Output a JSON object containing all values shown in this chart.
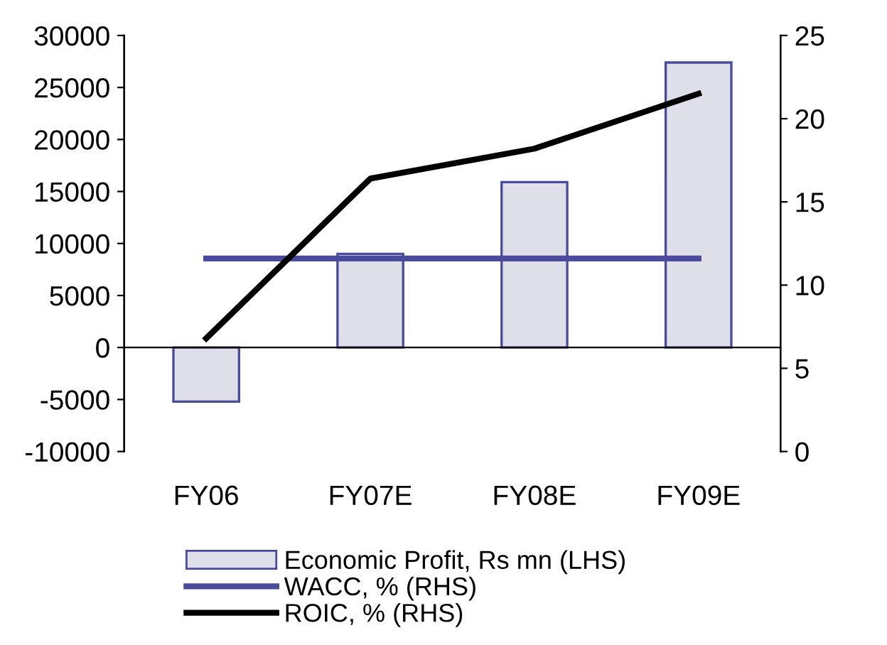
{
  "chart_data": {
    "type": "bar",
    "categories": [
      "FY06",
      "FY07E",
      "FY08E",
      "FY09E"
    ],
    "series": [
      {
        "name": "Economic Profit, Rs mn (LHS)",
        "color": "#dfdfea",
        "values": [
          -5200,
          9000,
          15900,
          27400
        ]
      },
      {
        "name": "WACC, % (RHS)",
        "type": "line",
        "axis": "y2",
        "color": "#4b4b9b",
        "values": [
          11.6,
          11.6,
          11.6,
          11.6
        ]
      },
      {
        "name": "ROIC, % (RHS)",
        "type": "line",
        "axis": "y2",
        "color": "#000000",
        "values": [
          6.8,
          16.4,
          18.2,
          21.5
        ]
      }
    ],
    "ylim": [
      -10000,
      30000
    ],
    "yticks": [
      -10000,
      -5000,
      0,
      5000,
      10000,
      15000,
      20000,
      25000,
      30000
    ],
    "y2lim": [
      0,
      25
    ],
    "y2ticks": [
      0,
      5,
      10,
      15,
      20,
      25
    ],
    "grid": false,
    "legend": "bottom",
    "marker": "none"
  }
}
